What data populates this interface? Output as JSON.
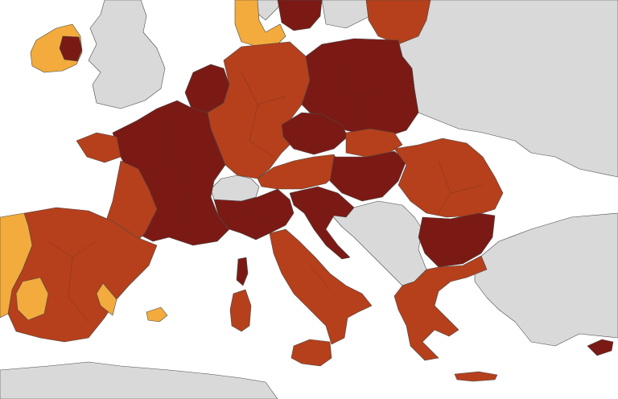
{
  "map": {
    "colors": {
      "no_data": "#d9d9d9",
      "dark_red": "#7b1a14",
      "red": "#b5401b",
      "orange": "#f2ab3c",
      "sea": "#ffffff"
    },
    "regions": [
      {
        "name": "france",
        "category": "dark_red"
      },
      {
        "name": "france-southwest",
        "category": "red"
      },
      {
        "name": "brittany",
        "category": "red"
      },
      {
        "name": "belgium-netherlands",
        "category": "dark_red"
      },
      {
        "name": "germany",
        "category": "red"
      },
      {
        "name": "denmark",
        "category": "orange"
      },
      {
        "name": "sweden-south",
        "category": "dark_red"
      },
      {
        "name": "poland",
        "category": "dark_red"
      },
      {
        "name": "lithuania-latvia",
        "category": "red"
      },
      {
        "name": "czechia",
        "category": "dark_red"
      },
      {
        "name": "austria",
        "category": "red"
      },
      {
        "name": "slovakia",
        "category": "red"
      },
      {
        "name": "hungary",
        "category": "dark_red"
      },
      {
        "name": "romania",
        "category": "red"
      },
      {
        "name": "bulgaria",
        "category": "dark_red"
      },
      {
        "name": "greece",
        "category": "red"
      },
      {
        "name": "italy-north",
        "category": "dark_red"
      },
      {
        "name": "italy-south",
        "category": "red"
      },
      {
        "name": "slovenia-croatia",
        "category": "dark_red"
      },
      {
        "name": "spain",
        "category": "red"
      },
      {
        "name": "portugal",
        "category": "orange"
      },
      {
        "name": "ireland",
        "category": "orange"
      },
      {
        "name": "cyprus",
        "category": "dark_red"
      },
      {
        "name": "switzerland",
        "category": "no_data"
      },
      {
        "name": "united-kingdom",
        "category": "no_data"
      },
      {
        "name": "balkans",
        "category": "no_data"
      }
    ]
  }
}
